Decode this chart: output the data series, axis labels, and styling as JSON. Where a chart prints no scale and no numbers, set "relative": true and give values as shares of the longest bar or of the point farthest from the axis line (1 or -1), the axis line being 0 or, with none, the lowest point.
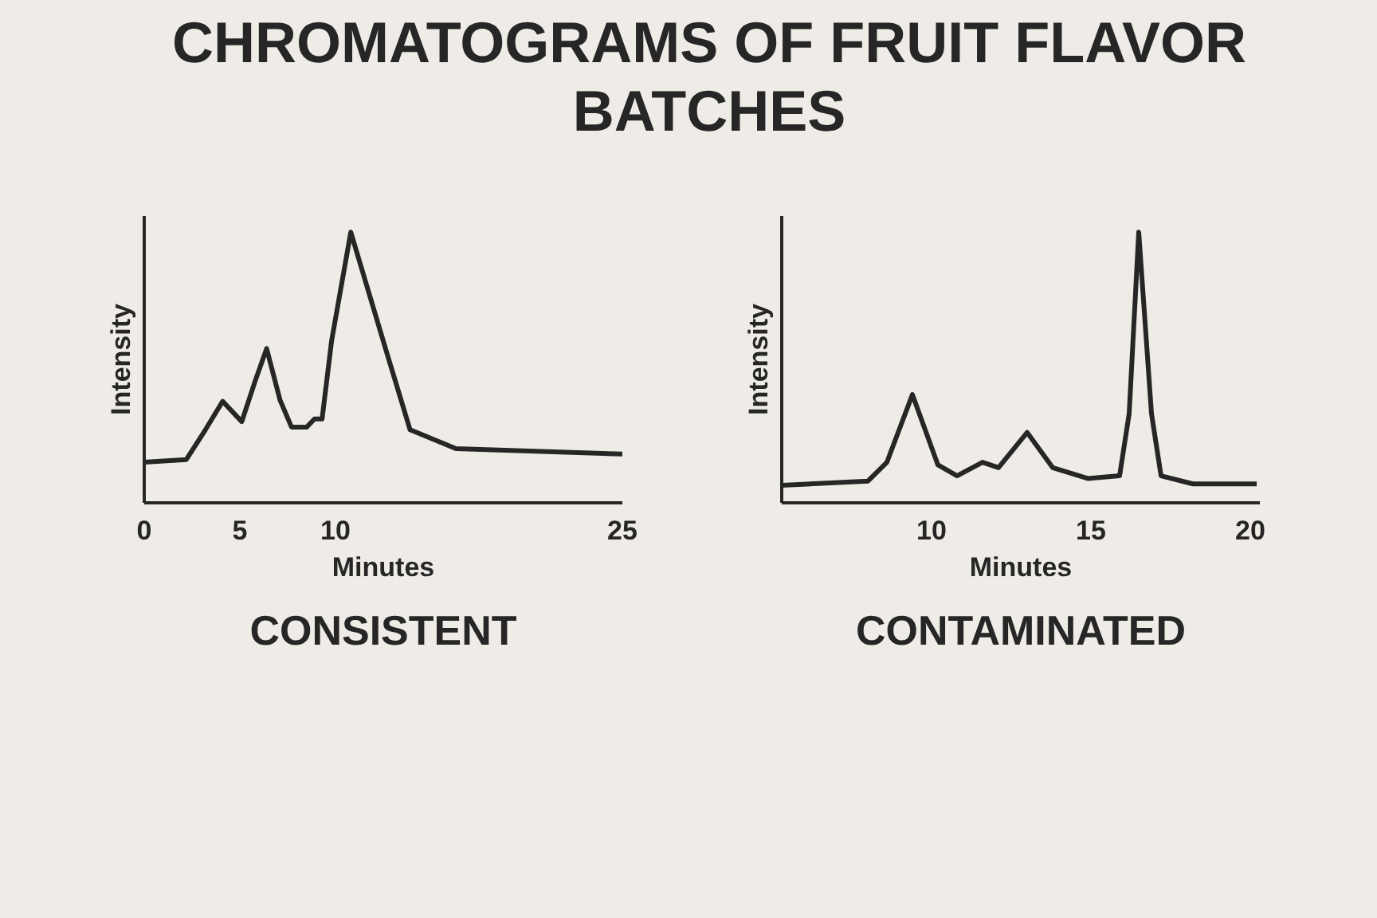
{
  "chart_data": [
    {
      "type": "line",
      "title": "CHROMATOGRAMS OF FRUIT FLAVOR BATCHES",
      "subtitle": "CONSISTENT",
      "xlabel": "Minutes",
      "ylabel": "Intensity",
      "relative": true,
      "tick_labels": "x",
      "xlim": [
        0,
        25
      ],
      "xticks": [
        0,
        5,
        10,
        25
      ],
      "x": [
        0,
        2.2,
        3.2,
        4.1,
        5.1,
        5.8,
        6.4,
        7.1,
        7.7,
        8.5,
        8.9,
        9.3,
        9.8,
        10.8,
        12.7,
        13.9,
        16.3,
        25
      ],
      "series": [
        {
          "color": "#262626",
          "values": [
            0.15,
            0.16,
            0.27,
            0.375,
            0.3,
            0.45,
            0.57,
            0.38,
            0.28,
            0.28,
            0.31,
            0.31,
            0.6,
            1.0,
            0.55,
            0.27,
            0.2,
            0.18
          ]
        }
      ]
    },
    {
      "type": "line",
      "subtitle": "CONTAMINATED",
      "xlabel": "Minutes",
      "ylabel": "Intensity",
      "relative": true,
      "tick_labels": "x",
      "xlim": [
        5.3,
        20.3
      ],
      "xticks": [
        10,
        15,
        20
      ],
      "x": [
        5.3,
        8.0,
        8.6,
        9.4,
        10.2,
        10.8,
        11.6,
        12.1,
        13.0,
        13.8,
        14.9,
        15.9,
        16.2,
        16.5,
        16.9,
        17.2,
        18.2,
        20.2
      ],
      "series": [
        {
          "color": "#262626",
          "values": [
            0.065,
            0.08,
            0.15,
            0.4,
            0.14,
            0.1,
            0.15,
            0.13,
            0.26,
            0.13,
            0.09,
            0.1,
            0.33,
            1.0,
            0.33,
            0.1,
            0.07,
            0.07
          ]
        }
      ]
    }
  ]
}
